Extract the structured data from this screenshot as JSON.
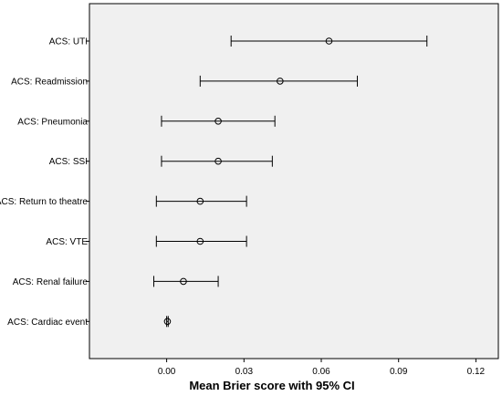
{
  "chart_data": {
    "type": "scatter",
    "title": "",
    "xlabel": "Mean Brier score with 95% CI",
    "ylabel": "",
    "xlim": [
      -0.024,
      0.124
    ],
    "xticks": [
      0.0,
      0.03,
      0.06,
      0.09,
      0.12
    ],
    "xtick_labels": [
      "0.00",
      "0.03",
      "0.06",
      "0.09",
      "0.12"
    ],
    "grid": false,
    "background_color": "#f0f0f0",
    "categories": [
      "ACS: UTI",
      "ACS: Readmission",
      "ACS: Pneumonia",
      "ACS: SSI",
      "ACS: Return to theatre",
      "ACS: VTE",
      "ACS: Renal failure",
      "ACS: Cardiac event"
    ],
    "series": [
      {
        "mean": [
          0.063,
          0.044,
          0.02,
          0.02,
          0.013,
          0.013,
          0.0065,
          0.0003
        ],
        "lower": [
          0.025,
          0.013,
          -0.002,
          -0.002,
          -0.004,
          -0.004,
          -0.005,
          0.0
        ],
        "upper": [
          0.101,
          0.074,
          0.042,
          0.041,
          0.031,
          0.031,
          0.02,
          0.0006
        ]
      }
    ]
  }
}
